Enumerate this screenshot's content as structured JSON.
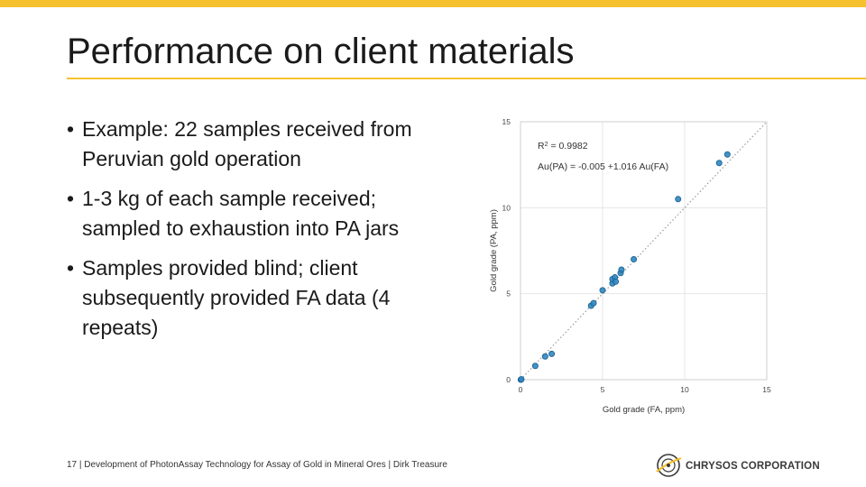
{
  "slide": {
    "title": "Performance on client materials",
    "accent_color": "#f5c12e",
    "bullets": [
      "Example: 22 samples received from Peruvian gold operation",
      "1-3 kg of each sample received; sampled to exhaustion into PA jars",
      "Samples provided blind; client subsequently provided FA data (4 repeats)"
    ],
    "footer": {
      "page_number": "17",
      "text": "Development of PhotonAssay Technology for Assay of Gold in Mineral Ores | Dirk Treasure"
    },
    "logo": {
      "name": "CHRYSOS CORPORATION"
    }
  },
  "chart_data": {
    "type": "scatter",
    "xlabel": "Gold grade (FA, ppm)",
    "ylabel": "Gold grade (PA, ppm)",
    "xlim": [
      0,
      15
    ],
    "ylim": [
      0,
      15
    ],
    "xticks": [
      0,
      5,
      10,
      15
    ],
    "yticks": [
      0,
      5,
      10,
      15
    ],
    "grid": true,
    "point_color": "#2e86c1",
    "annotations": {
      "r2_label": "R",
      "r2_sup": "2",
      "r2_value": " = 0.9982",
      "equation": "Au(PA) = -0.005 +1.016 Au(FA)"
    },
    "reference_line": {
      "style": "dotted",
      "from": [
        0,
        0
      ],
      "to": [
        15,
        15
      ]
    },
    "points": [
      {
        "x": 0.02,
        "y": 0.0
      },
      {
        "x": 0.05,
        "y": 0.02
      },
      {
        "x": 0.9,
        "y": 0.8
      },
      {
        "x": 1.5,
        "y": 1.35
      },
      {
        "x": 1.9,
        "y": 1.5
      },
      {
        "x": 4.3,
        "y": 4.3
      },
      {
        "x": 4.45,
        "y": 4.45
      },
      {
        "x": 5.0,
        "y": 5.2
      },
      {
        "x": 5.6,
        "y": 5.6
      },
      {
        "x": 5.6,
        "y": 5.85
      },
      {
        "x": 5.75,
        "y": 5.95
      },
      {
        "x": 5.8,
        "y": 5.7
      },
      {
        "x": 6.1,
        "y": 6.2
      },
      {
        "x": 6.15,
        "y": 6.4
      },
      {
        "x": 6.9,
        "y": 7.0
      },
      {
        "x": 9.6,
        "y": 10.5
      },
      {
        "x": 12.1,
        "y": 12.6
      },
      {
        "x": 12.6,
        "y": 13.1
      }
    ]
  }
}
